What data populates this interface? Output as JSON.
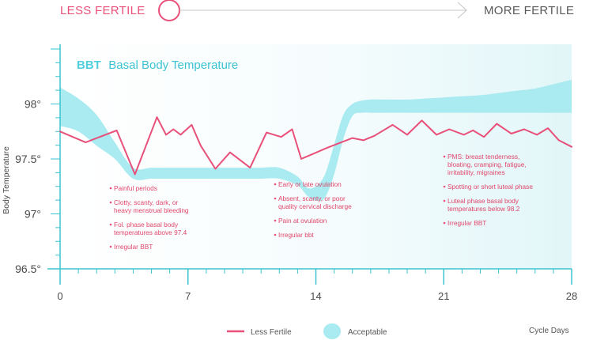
{
  "header": {
    "left_label": "LESS FERTILE",
    "right_label": "MORE FERTILE"
  },
  "chart_data": {
    "type": "line",
    "title_abbr": "BBT",
    "title": "Basal Body Temperature",
    "ylabel": "Body Temperature",
    "xlabel": "Cycle Days",
    "xlim": [
      0,
      28
    ],
    "ylim": [
      96.5,
      98.5
    ],
    "x_ticks": [
      0,
      7,
      14,
      21,
      28
    ],
    "x_tick_labels": [
      "0",
      "7",
      "14",
      "21",
      "28"
    ],
    "y_ticks": [
      96.5,
      97,
      97.5,
      98
    ],
    "y_tick_labels": [
      "96.5°",
      "97°",
      "97.5°",
      "98°"
    ],
    "series": [
      {
        "name": "Less Fertile",
        "color": "#e8507a",
        "x": [
          0,
          1.4,
          3.1,
          4.1,
          5.3,
          5.8,
          6.2,
          6.6,
          7.2,
          7.7,
          8.5,
          9.3,
          10.4,
          11.3,
          12.1,
          12.7,
          13.2,
          13.9,
          14.6,
          16.0,
          16.6,
          17.2,
          18.2,
          19.0,
          19.8,
          20.6,
          21.3,
          22.1,
          22.6,
          23.2,
          23.9,
          24.7,
          25.4,
          26.1,
          26.7,
          27.3,
          28.0
        ],
        "y": [
          97.75,
          97.65,
          97.76,
          97.36,
          97.88,
          97.72,
          97.77,
          97.72,
          97.81,
          97.62,
          97.41,
          97.56,
          97.42,
          97.74,
          97.7,
          97.77,
          97.5,
          97.55,
          97.6,
          97.69,
          97.67,
          97.71,
          97.81,
          97.72,
          97.85,
          97.72,
          97.77,
          97.72,
          97.76,
          97.7,
          97.82,
          97.73,
          97.77,
          97.72,
          97.78,
          97.67,
          97.61
        ]
      }
    ],
    "band": {
      "name": "Acceptable",
      "color": "#a9ebf0",
      "x": [
        0,
        1,
        2,
        3,
        4,
        5,
        6,
        7,
        8,
        9,
        10,
        11,
        12,
        13,
        13.5,
        14,
        14.5,
        15,
        15.5,
        16,
        16.5,
        17,
        17.5,
        18,
        19,
        20,
        21,
        22,
        23,
        24,
        25,
        26,
        27,
        28
      ],
      "upper": [
        98.15,
        98.05,
        97.9,
        97.65,
        97.42,
        97.42,
        97.42,
        97.42,
        97.42,
        97.42,
        97.42,
        97.42,
        97.42,
        97.34,
        97.24,
        97.25,
        97.36,
        97.63,
        97.9,
        98.0,
        98.03,
        98.04,
        98.04,
        98.04,
        98.04,
        98.05,
        98.06,
        98.07,
        98.08,
        98.1,
        98.12,
        98.14,
        98.18,
        98.22
      ],
      "lower": [
        97.8,
        97.75,
        97.62,
        97.5,
        97.32,
        97.32,
        97.32,
        97.32,
        97.32,
        97.32,
        97.32,
        97.32,
        97.32,
        97.26,
        97.17,
        97.12,
        97.15,
        97.36,
        97.68,
        97.89,
        97.92,
        97.92,
        97.92,
        97.92,
        97.92,
        97.92,
        97.92,
        97.92,
        97.92,
        97.92,
        97.92,
        97.92,
        97.92,
        97.92
      ]
    },
    "annotation_groups": [
      [
        "Painful periods",
        "Clotty, scanty, dark, or heavy menstrual bleeding",
        "Fol. phase basal body temperatures above 97.4",
        "Irregular BBT"
      ],
      [
        "Early or late ovulation",
        "Absent, scanty, or poor quality cervical discharge",
        "Pain at ovulation",
        "Irregular bbt"
      ],
      [
        "PMS: breast tenderness, bloating, cramping, fatigue, irritability, migraines",
        "Spotting or short luteal phase",
        "Luteal phase basal body temperatures below 98.2",
        "Irregular BBT"
      ]
    ],
    "annotation_lines": [
      [
        "Painful periods",
        "Clotty, scanty, dark, or",
        "heavy menstrual bleeding",
        "Fol. phase basal body",
        "temperatures above 97.4",
        "Irregular BBT"
      ],
      [
        "Early or late ovulation",
        "Absent, scanty, or poor",
        "quality cervical discharge",
        "Pain at ovulation",
        "Irregular bbt"
      ],
      [
        "PMS: breast tenderness,",
        "bloating, cramping, fatigue,",
        "irritability, migraines",
        "Spotting or short luteal phase",
        "Luteal phase basal body",
        "temperatures below 98.2",
        "Irregular BBT"
      ]
    ],
    "legend": {
      "items": [
        "Less Fertile",
        "Acceptable"
      ],
      "placement": "bottom-center"
    },
    "grid": false
  },
  "colors": {
    "accent_pink": "#e8507a",
    "band_cyan": "#a9ebf0",
    "axis": "#3bc3d1",
    "arrow_grey": "#c7c7c7"
  }
}
